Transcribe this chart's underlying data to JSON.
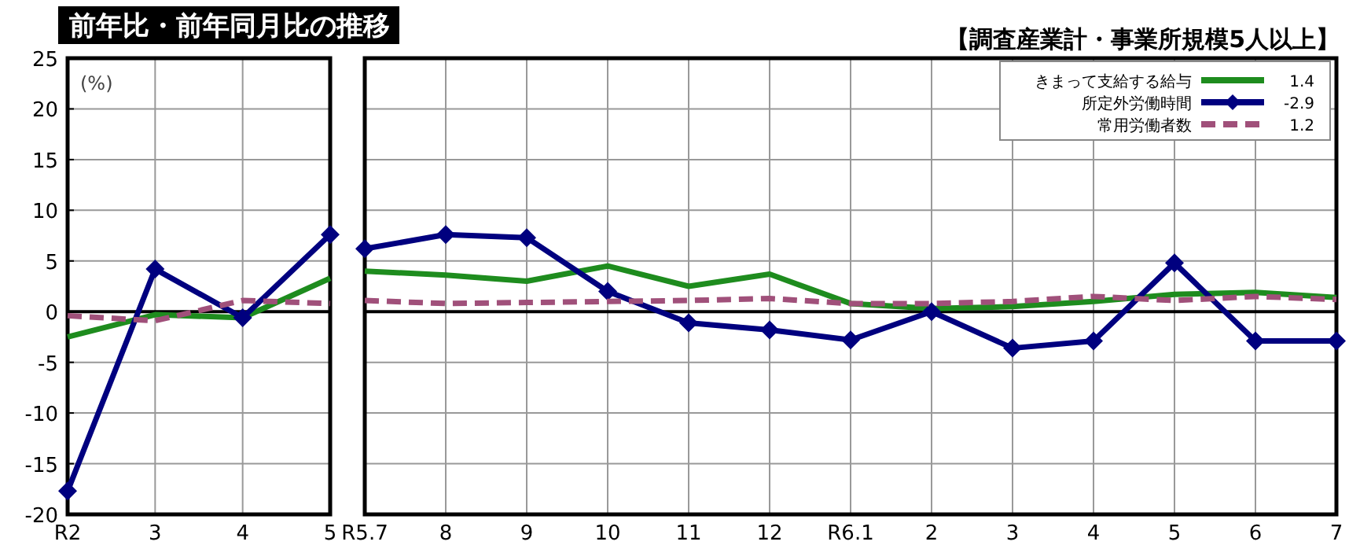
{
  "chart_data": [
    {
      "type": "line",
      "title": "前年比・前年同月比の推移",
      "ylabel": "(%)",
      "categories": [
        "R2",
        "3",
        "4",
        "5"
      ],
      "ylim": [
        -20,
        25
      ],
      "yticks": [
        -20,
        -15,
        -10,
        -5,
        0,
        5,
        10,
        15,
        20,
        25
      ],
      "grid": true,
      "series": [
        {
          "color": "#1e8c1e",
          "values": [
            -2.5,
            -0.3,
            -0.6,
            3.3
          ],
          "marker": "none",
          "line_style": "solid"
        },
        {
          "color": "#00007f",
          "values": [
            -17.7,
            4.2,
            -0.6,
            7.6
          ],
          "marker": "diamond",
          "line_style": "solid"
        },
        {
          "color": "#a0507a",
          "values": [
            -0.4,
            -0.9,
            1.1,
            0.8
          ],
          "marker": "none",
          "line_style": "dashed"
        }
      ]
    },
    {
      "type": "line",
      "title": "【調査産業計・事業所規模5人以上】",
      "categories": [
        "R5.7",
        "8",
        "9",
        "10",
        "11",
        "12",
        "R6.1",
        "2",
        "3",
        "4",
        "5",
        "6",
        "7"
      ],
      "ylim": [
        -20,
        25
      ],
      "yticks": [
        -20,
        -15,
        -10,
        -5,
        0,
        5,
        10,
        15,
        20,
        25
      ],
      "grid": true,
      "tick_labels": "x",
      "legend": "top right",
      "annotations": [
        "1.4",
        "-2.9",
        "1.2"
      ],
      "series": [
        {
          "name": "きまって支給する給与",
          "color": "#1e8c1e",
          "values": [
            4.0,
            3.6,
            3.0,
            4.5,
            2.5,
            3.7,
            0.8,
            0.3,
            0.5,
            1.0,
            1.7,
            1.9,
            1.4
          ],
          "marker": "none",
          "line_style": "solid"
        },
        {
          "name": "所定外労働時間",
          "color": "#00007f",
          "values": [
            6.2,
            7.6,
            7.3,
            2.0,
            -1.1,
            -1.8,
            -2.8,
            0.0,
            -3.6,
            -2.9,
            4.8,
            -2.9,
            -2.9
          ],
          "marker": "diamond",
          "line_style": "solid"
        },
        {
          "name": "常用労働者数",
          "color": "#a0507a",
          "values": [
            1.1,
            0.8,
            0.9,
            1.0,
            1.1,
            1.3,
            0.8,
            0.8,
            1.0,
            1.5,
            1.1,
            1.5,
            1.2
          ],
          "marker": "none",
          "line_style": "dashed"
        }
      ]
    }
  ]
}
